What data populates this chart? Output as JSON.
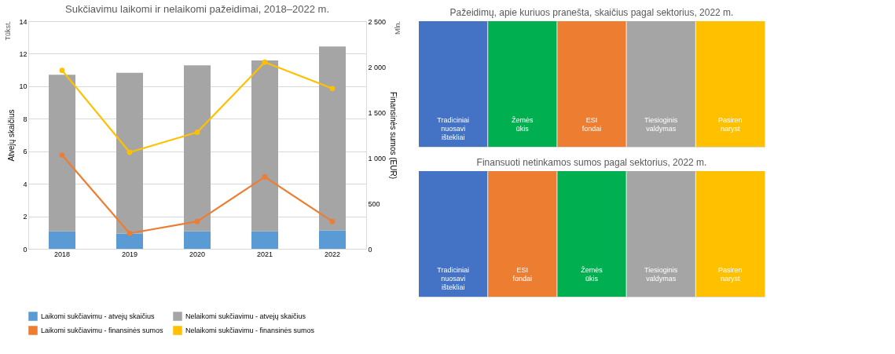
{
  "chart_data": [
    {
      "type": "bar",
      "title": "Sukčiavimu laikomi ir nelaikomi pažeidimai, 2018–2022 m.",
      "ylabel": "Atvejų skaičius",
      "y2label": "Finansinės sumos (EUR)",
      "annotations": [
        "Tūkst.",
        "Mln."
      ],
      "categories": [
        "2018",
        "2019",
        "2020",
        "2021",
        "2022"
      ],
      "stacked": true,
      "series": [
        {
          "name": "Laikomi sukčiavimu - atvejų skaičius",
          "color": "#5b9bd5",
          "values": [
            1.08,
            0.94,
            1.08,
            1.08,
            1.13
          ]
        },
        {
          "name": "Nelaikomi sukčiavimu - atvejų skaičius",
          "color": "#a5a5a5",
          "values": [
            9.62,
            9.89,
            10.21,
            10.51,
            11.31
          ]
        },
        {
          "name": "Laikomi sukčiavimu - finansinės sumos",
          "color": "#ed7d31",
          "type": "line",
          "axis": "y2",
          "values": [
            1030,
            170,
            300,
            790,
            300
          ]
        },
        {
          "name": "Nelaikomi sukčiavimu - finansinės sumos",
          "color": "#ffc000",
          "type": "line",
          "axis": "y2",
          "values": [
            1960,
            1060,
            1280,
            2050,
            1760
          ]
        }
      ],
      "marker": "circle",
      "ylim": [
        0,
        14
      ],
      "yticks": [
        0,
        2,
        4,
        6,
        8,
        10,
        12,
        14
      ],
      "y2lim": [
        0,
        2500
      ],
      "y2ticks": [
        0,
        500,
        {
          "value": 1000,
          "label": "1 000"
        },
        {
          "value": 1500,
          "label": "1 500"
        },
        {
          "value": 2000,
          "label": "2 000"
        },
        {
          "value": 2500,
          "label": "2 500"
        }
      ],
      "grid": "y",
      "legend": "bottom"
    },
    {
      "type": "other",
      "title": "Pažeidimų, apie kuriuos pranešta, skaičius pagal sektorius, 2022 m.",
      "categories": [
        "Tradiciniai nuosavi ištekliai",
        "Žemės ūkis",
        "ESI fondai",
        "Tiesioginis valdymas",
        "Pasiren naryst"
      ],
      "colors": [
        "#4472c4",
        "#00b050",
        "#ed7d31",
        "#a5a5a5",
        "#ffc000"
      ]
    },
    {
      "type": "other",
      "title": "Finansuoti netinkamos sumos pagal sektorius, 2022 m.",
      "categories": [
        "Tradiciniai nuosavi ištekliai",
        "ESI fondai",
        "Žemės ūkis",
        "Tiesioginis valdymas",
        "Pasiren naryst"
      ],
      "colors": [
        "#4472c4",
        "#ed7d31",
        "#00b050",
        "#a5a5a5",
        "#ffc000"
      ]
    }
  ]
}
